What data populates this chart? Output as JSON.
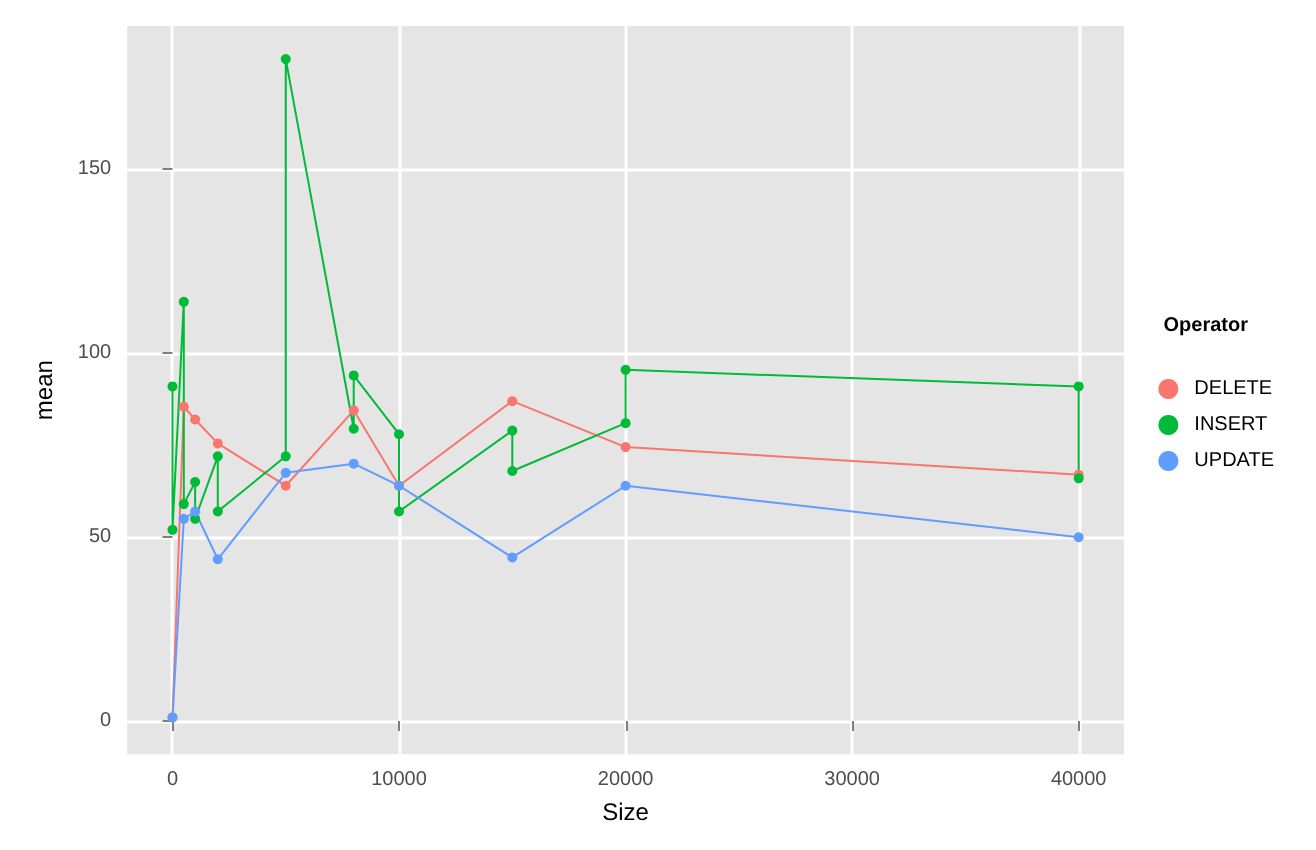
{
  "chart_data": {
    "type": "line",
    "xlabel": "Size",
    "ylabel": "mean",
    "legend_title": "Operator",
    "legend": "right",
    "marker": "circle",
    "grid": true,
    "xlim": [
      -2000,
      42000
    ],
    "xticks": [
      0,
      10000,
      20000,
      30000,
      40000
    ],
    "ylim": [
      -9,
      189
    ],
    "yticks": [
      0,
      50,
      100,
      150
    ],
    "series": [
      {
        "name": "DELETE",
        "color": "#f8766d",
        "x": [
          0,
          500,
          1000,
          2000,
          5000,
          8000,
          10000,
          15000,
          20000,
          40000
        ],
        "values": [
          1,
          85.5,
          82,
          75.5,
          64,
          84.5,
          64,
          87,
          74.5,
          67
        ]
      },
      {
        "name": "INSERT",
        "color": "#00ba38",
        "x": [
          0,
          0,
          500,
          500,
          1000,
          1000,
          2000,
          2000,
          5000,
          5000,
          8000,
          8000,
          10000,
          10000,
          15000,
          15000,
          20000,
          20000,
          40000,
          40000
        ],
        "values": [
          91,
          52,
          114,
          59,
          65,
          55,
          72,
          57,
          72,
          180,
          79.5,
          94,
          78,
          57,
          79,
          68,
          81,
          95.5,
          91,
          66
        ]
      },
      {
        "name": "UPDATE",
        "color": "#619cff",
        "x": [
          0,
          500,
          1000,
          2000,
          5000,
          8000,
          10000,
          15000,
          20000,
          40000
        ],
        "values": [
          1,
          55,
          57,
          44,
          67.5,
          70,
          64,
          44.5,
          64,
          50
        ]
      }
    ]
  }
}
